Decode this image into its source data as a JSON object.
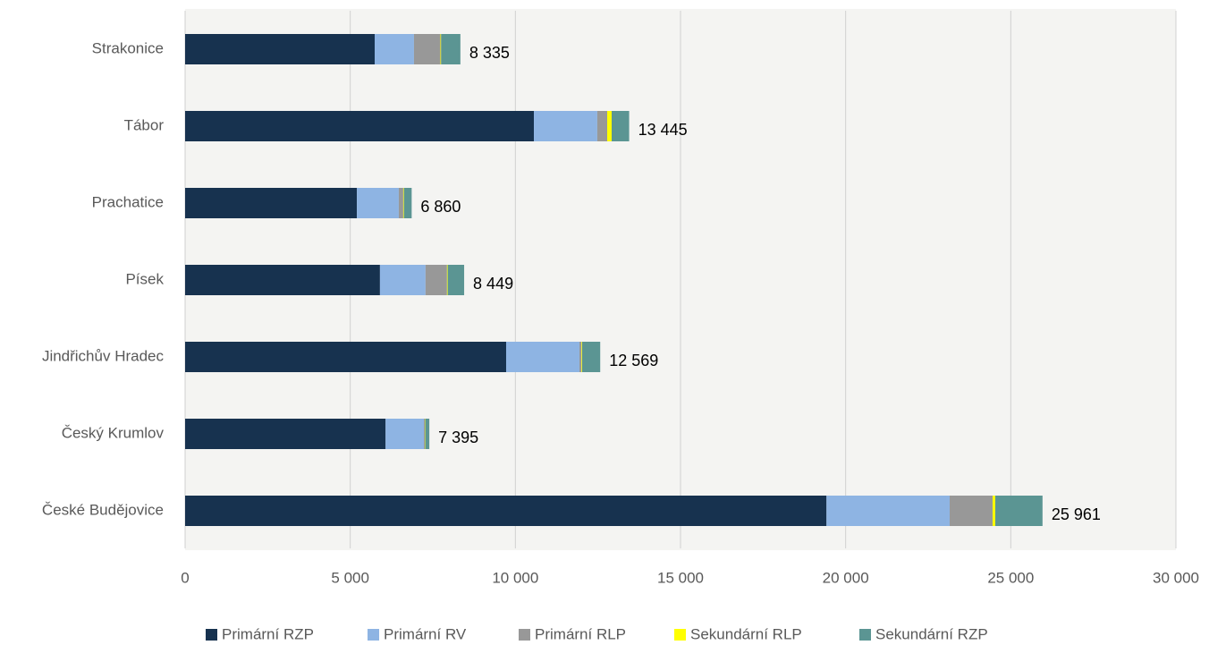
{
  "chart_data": {
    "type": "stacked-barh",
    "categories": [
      "Strakonice",
      "Tábor",
      "Prachatice",
      "Písek",
      "Jindřichův Hradec",
      "Český Krumlov",
      "České Budějovice"
    ],
    "series": [
      {
        "name": "Primární RZP",
        "color": "#17324f",
        "values": [
          5740,
          10560,
          5200,
          5900,
          9720,
          6070,
          19420
        ]
      },
      {
        "name": "Primární RV",
        "color": "#8eb4e3",
        "values": [
          1190,
          1920,
          1270,
          1380,
          2220,
          1160,
          3730
        ]
      },
      {
        "name": "Primární RLP",
        "color": "#989898",
        "values": [
          800,
          300,
          135,
          650,
          60,
          30,
          1300
        ]
      },
      {
        "name": "Sekundární RLP",
        "color": "#ffff00",
        "values": [
          20,
          135,
          20,
          20,
          20,
          10,
          80
        ]
      },
      {
        "name": "Sekundární RZP",
        "color": "#5b9593",
        "values": [
          585,
          530,
          235,
          499,
          549,
          125,
          1431
        ]
      }
    ],
    "totals": [
      8335,
      13445,
      6860,
      8449,
      12569,
      7395,
      25961
    ],
    "total_labels": [
      "8 335",
      "13 445",
      "6 860",
      "8 449",
      "12 569",
      "7 395",
      "25 961"
    ],
    "xlim": [
      0,
      30000
    ],
    "xticks": [
      0,
      {
        "value": 5000,
        "label": "5 000"
      },
      {
        "value": 10000,
        "label": "10 000"
      },
      {
        "value": 15000,
        "label": "15 000"
      },
      {
        "value": 20000,
        "label": "20 000"
      },
      {
        "value": 25000,
        "label": "25 000"
      },
      {
        "value": 30000,
        "label": "30 000"
      }
    ],
    "grid": true
  }
}
